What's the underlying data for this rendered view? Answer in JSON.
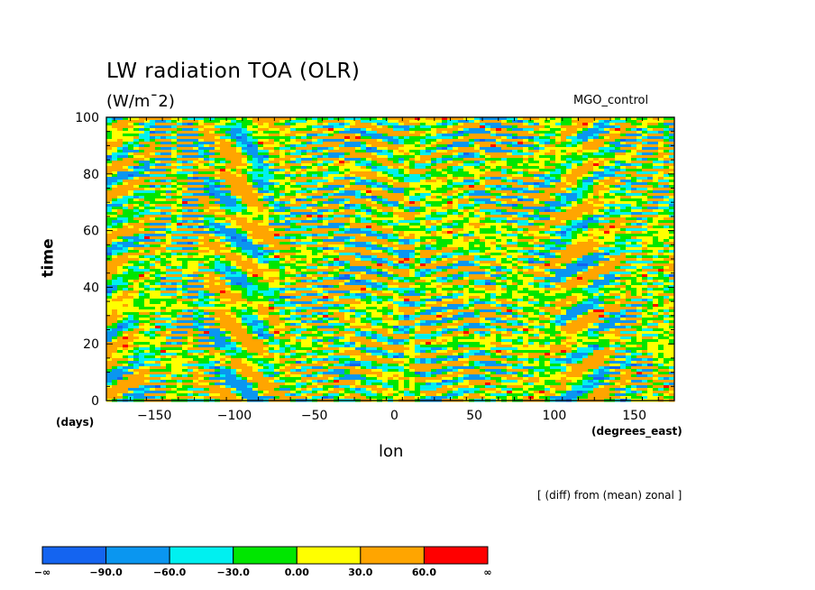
{
  "chart_data": {
    "type": "heatmap",
    "title": "LW radiation TOA (OLR)",
    "units": "(W/m¯2)",
    "run_name": "MGO_control",
    "xlabel": "lon",
    "x_units": "(degrees_east)",
    "ylabel": "time",
    "y_units": "(days)",
    "note": "[ (diff) from (mean) zonal ]",
    "xlim": [
      -180,
      175
    ],
    "ylim": [
      0,
      100
    ],
    "x_ticks": [
      -150,
      -100,
      -50,
      0,
      50,
      100,
      150
    ],
    "x_tick_labels": [
      "−150",
      "−100",
      "−50",
      "0",
      "50",
      "100",
      "150"
    ],
    "y_ticks": [
      0,
      20,
      40,
      60,
      80,
      100
    ],
    "y_tick_labels": [
      "0",
      "20",
      "40",
      "60",
      "80",
      "100"
    ],
    "colorbar": {
      "labels": [
        "−∞",
        "−90.0",
        "−60.0",
        "−30.0",
        "0.00",
        "30.0",
        "60.0",
        "∞"
      ],
      "colors": [
        "#1464f0",
        "#0a96f0",
        "#00f0f0",
        "#00e600",
        "#ffff00",
        "#ffa500",
        "#ff0000"
      ]
    }
  }
}
